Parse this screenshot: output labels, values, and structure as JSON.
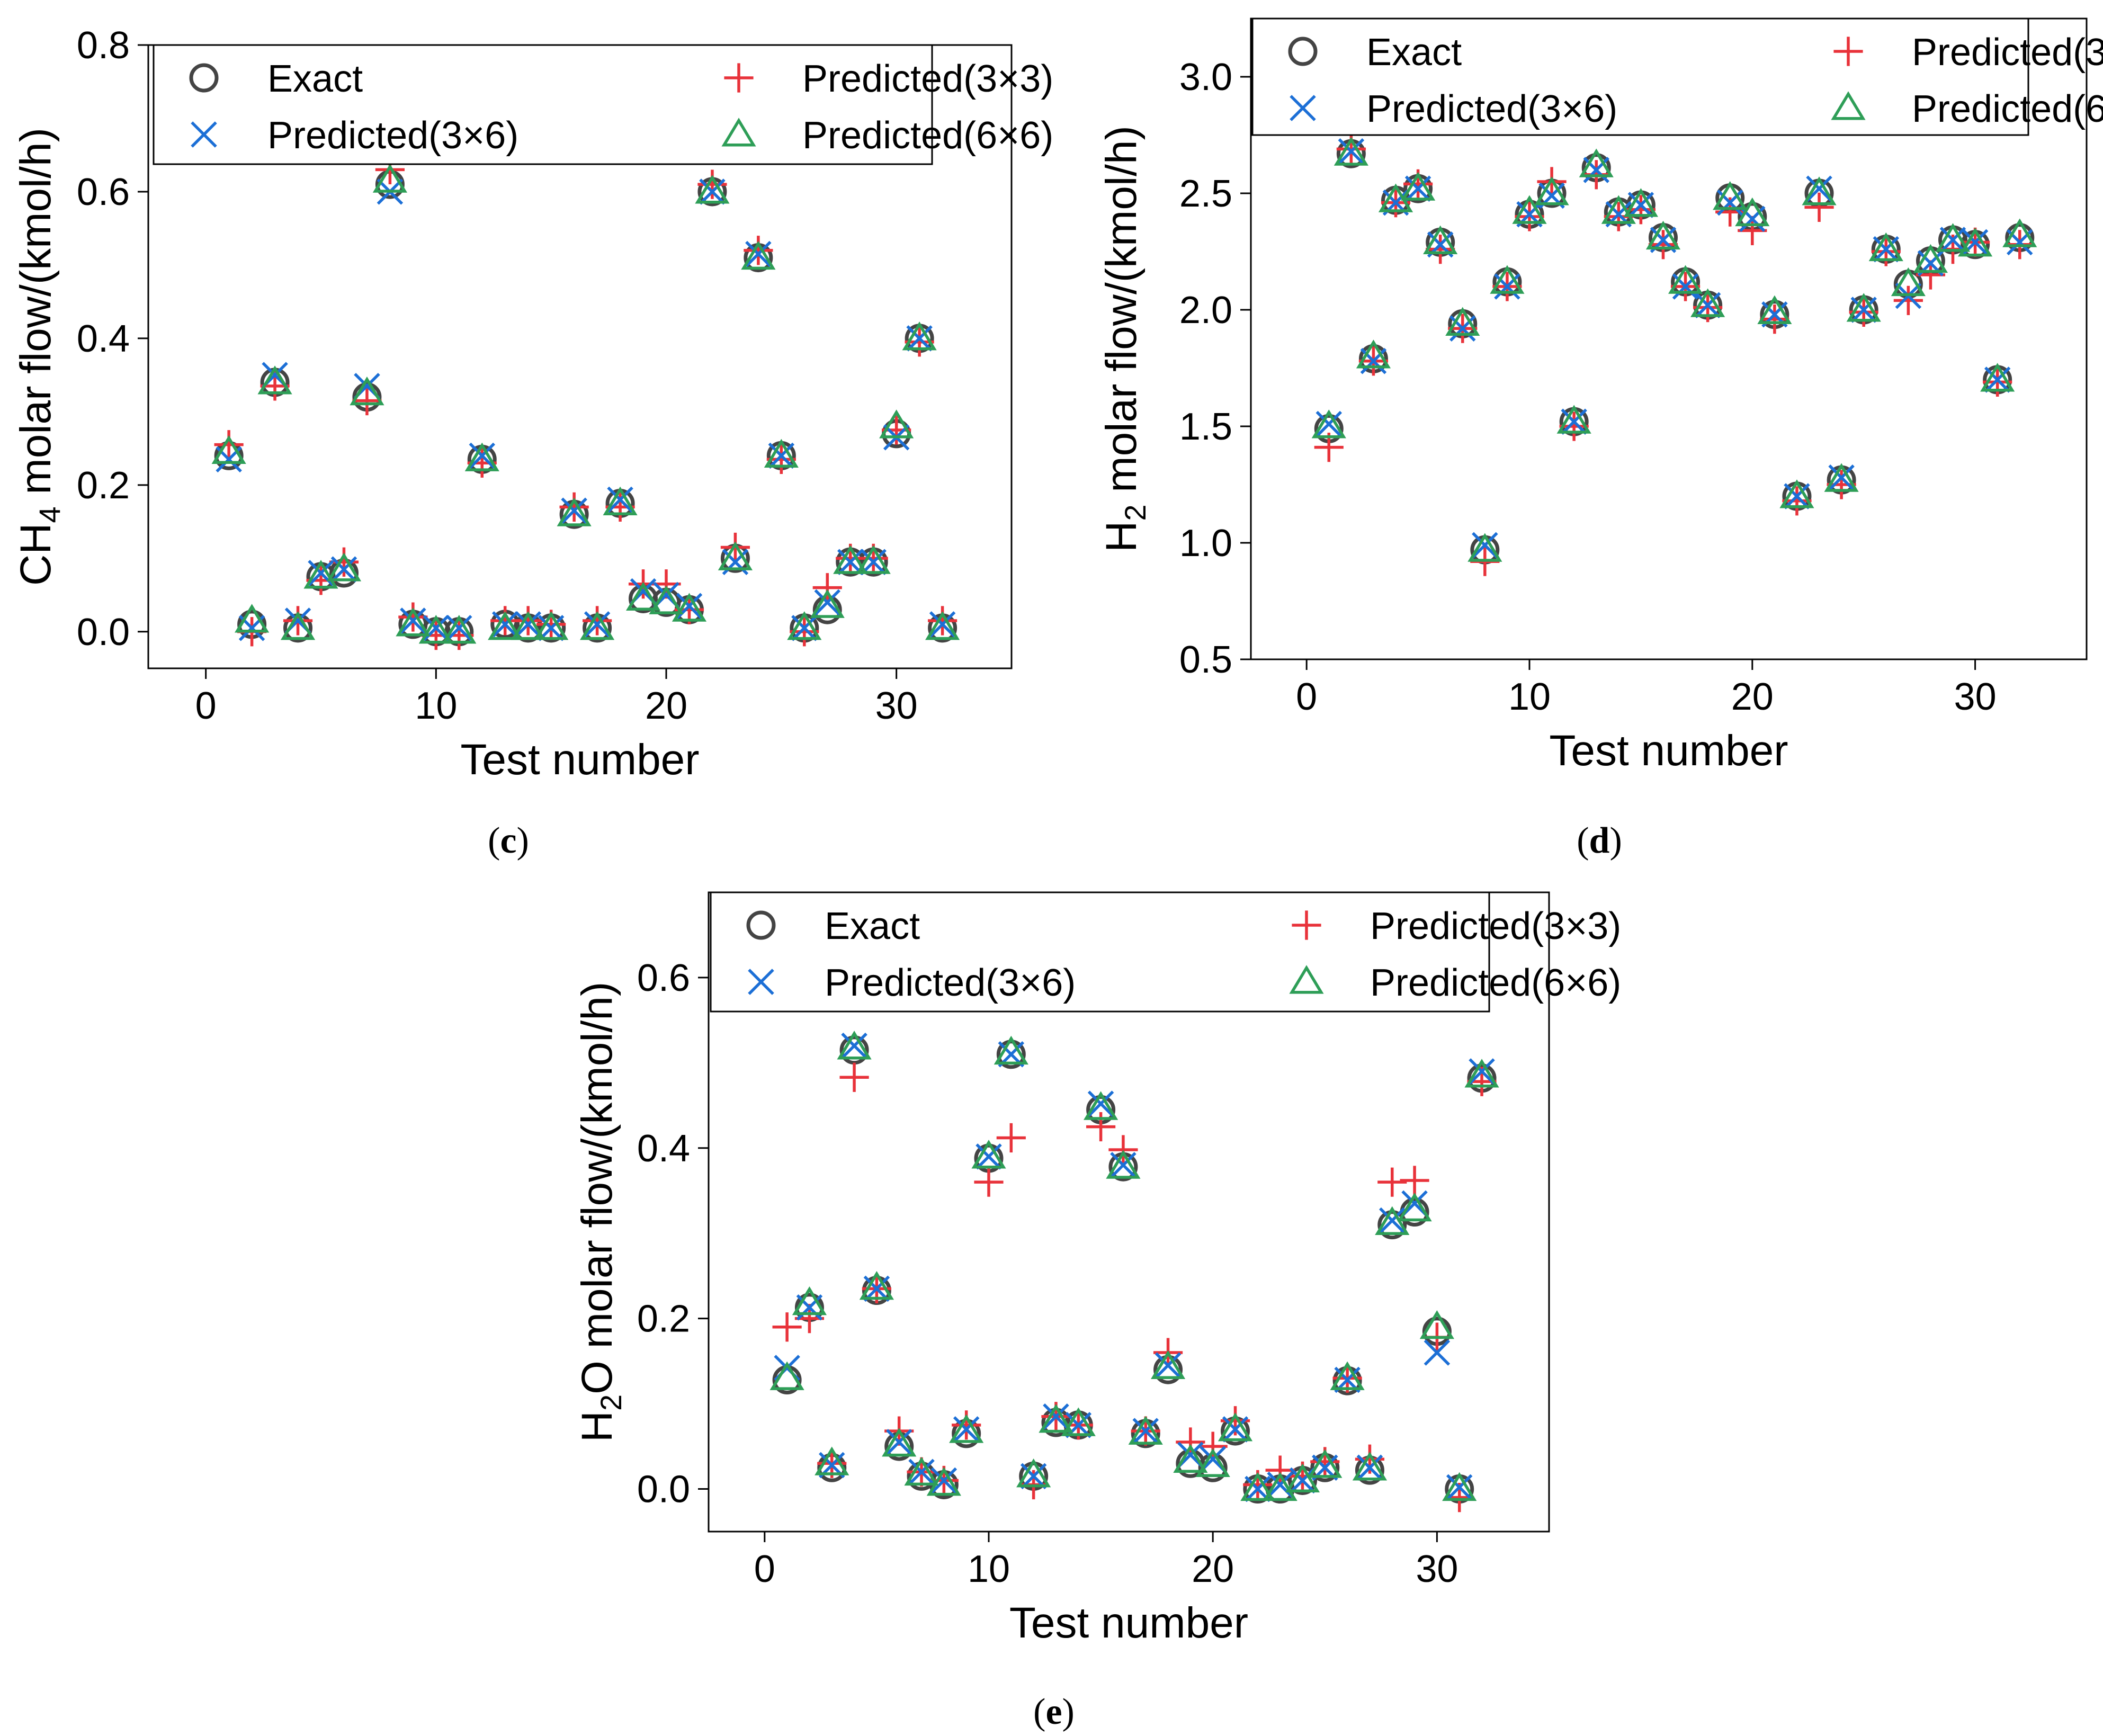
{
  "colors": {
    "exact": "#444444",
    "pred3x3": "#e8323a",
    "pred3x6": "#1c6fd6",
    "pred6x6": "#2e9e57"
  },
  "legend_labels": [
    "Exact",
    "Predicted(3×3)",
    "Predicted(3×6)",
    "Predicted(6×6)"
  ],
  "chart_data": [
    {
      "type": "scatter",
      "panel_label": "(c)",
      "xlabel": "Test number",
      "ylabel": {
        "base": "CH",
        "sub": "4",
        "rest": " molar flow/(kmol/h)"
      },
      "xlim": [
        -2.5,
        35
      ],
      "ylim": [
        -0.05,
        0.8
      ],
      "xticks": [
        0,
        10,
        20,
        30
      ],
      "yticks": [
        0.0,
        0.2,
        0.4,
        0.6,
        0.8
      ],
      "ytick_labels": [
        "0.0",
        "0.2",
        "0.4",
        "0.6",
        "0.8"
      ],
      "x": [
        1,
        2,
        3,
        4,
        5,
        6,
        7,
        8,
        9,
        10,
        11,
        12,
        13,
        14,
        15,
        16,
        17,
        18,
        19,
        20,
        21,
        22,
        23,
        24,
        25,
        26,
        27,
        28,
        29,
        30,
        31,
        32
      ],
      "series": [
        {
          "name": "Exact",
          "marker": "circle",
          "values": [
            0.24,
            0.01,
            0.34,
            0.005,
            0.075,
            0.08,
            0.32,
            0.61,
            0.01,
            0.0,
            0.0,
            0.235,
            0.01,
            0.005,
            0.005,
            0.16,
            0.005,
            0.175,
            0.045,
            0.04,
            0.03,
            0.6,
            0.1,
            0.51,
            0.24,
            0.005,
            0.03,
            0.095,
            0.095,
            0.27,
            0.4,
            0.005
          ]
        },
        {
          "name": "Predicted(3×3)",
          "marker": "plus",
          "values": [
            0.255,
            0.0,
            0.335,
            0.015,
            0.07,
            0.095,
            0.315,
            0.63,
            0.02,
            -0.005,
            -0.005,
            0.23,
            0.015,
            0.015,
            0.01,
            0.17,
            0.015,
            0.17,
            0.065,
            0.065,
            0.03,
            0.61,
            0.115,
            0.52,
            0.235,
            0.0,
            0.06,
            0.1,
            0.1,
            0.275,
            0.395,
            0.015
          ]
        },
        {
          "name": "Predicted(3×6)",
          "marker": "cross",
          "values": [
            0.235,
            0.005,
            0.35,
            0.015,
            0.08,
            0.085,
            0.335,
            0.6,
            0.015,
            0.005,
            0.005,
            0.24,
            0.01,
            0.01,
            0.005,
            0.165,
            0.01,
            0.18,
            0.055,
            0.05,
            0.035,
            0.6,
            0.095,
            0.515,
            0.24,
            0.005,
            0.04,
            0.095,
            0.095,
            0.265,
            0.4,
            0.01
          ]
        },
        {
          "name": "Predicted(6×6)",
          "marker": "triangle",
          "values": [
            0.245,
            0.015,
            0.34,
            0.005,
            0.075,
            0.085,
            0.325,
            0.615,
            0.01,
            0.0,
            0.0,
            0.235,
            0.005,
            0.005,
            0.005,
            0.16,
            0.005,
            0.175,
            0.045,
            0.04,
            0.03,
            0.6,
            0.1,
            0.51,
            0.24,
            0.005,
            0.035,
            0.095,
            0.095,
            0.28,
            0.4,
            0.005
          ]
        }
      ]
    },
    {
      "type": "scatter",
      "panel_label": "(d)",
      "xlabel": "Test number",
      "ylabel": {
        "base": "H",
        "sub": "2",
        "rest": " molar flow/(kmol/h)"
      },
      "xlim": [
        -2.5,
        35
      ],
      "ylim": [
        0.5,
        3.25
      ],
      "xticks": [
        0,
        10,
        20,
        30
      ],
      "yticks": [
        0.5,
        1.0,
        1.5,
        2.0,
        2.5,
        3.0
      ],
      "ytick_labels": [
        "0.5",
        "1.0",
        "1.5",
        "2.0",
        "2.5",
        "3.0"
      ],
      "x": [
        1,
        2,
        3,
        4,
        5,
        6,
        7,
        8,
        9,
        10,
        11,
        12,
        13,
        14,
        15,
        16,
        17,
        18,
        19,
        20,
        21,
        22,
        23,
        24,
        25,
        26,
        27,
        28,
        29,
        30,
        31,
        32
      ],
      "series": [
        {
          "name": "Exact",
          "marker": "circle",
          "values": [
            1.49,
            2.67,
            1.79,
            2.47,
            2.52,
            2.29,
            1.94,
            0.97,
            2.12,
            2.41,
            2.5,
            1.52,
            2.61,
            2.42,
            2.45,
            2.31,
            2.12,
            2.02,
            2.48,
            2.4,
            1.98,
            1.2,
            2.5,
            1.27,
            2.0,
            2.26,
            2.11,
            2.21,
            2.3,
            2.28,
            1.7,
            2.31
          ]
        },
        {
          "name": "Predicted(3×3)",
          "marker": "plus",
          "values": [
            1.41,
            2.69,
            1.78,
            2.46,
            2.54,
            2.26,
            1.92,
            0.92,
            2.1,
            2.4,
            2.55,
            1.5,
            2.58,
            2.4,
            2.43,
            2.28,
            2.1,
            2.01,
            2.42,
            2.34,
            1.96,
            1.18,
            2.44,
            1.25,
            1.99,
            2.25,
            2.04,
            2.15,
            2.26,
            2.29,
            1.69,
            2.28
          ]
        },
        {
          "name": "Predicted(3×6)",
          "marker": "cross",
          "values": [
            1.51,
            2.68,
            1.78,
            2.46,
            2.52,
            2.28,
            1.92,
            0.99,
            2.1,
            2.41,
            2.49,
            1.52,
            2.6,
            2.41,
            2.45,
            2.3,
            2.1,
            2.02,
            2.46,
            2.39,
            1.98,
            1.2,
            2.52,
            1.28,
            2.0,
            2.26,
            2.06,
            2.2,
            2.3,
            2.29,
            1.7,
            2.29
          ]
        },
        {
          "name": "Predicted(6×6)",
          "marker": "triangle",
          "values": [
            1.5,
            2.67,
            1.8,
            2.47,
            2.52,
            2.29,
            1.94,
            0.97,
            2.12,
            2.42,
            2.5,
            1.52,
            2.62,
            2.42,
            2.45,
            2.31,
            2.12,
            2.02,
            2.48,
            2.41,
            1.99,
            1.2,
            2.5,
            1.27,
            2.0,
            2.26,
            2.11,
            2.21,
            2.3,
            2.28,
            1.7,
            2.32
          ]
        }
      ]
    },
    {
      "type": "scatter",
      "panel_label": "(e)",
      "xlabel": "Test number",
      "ylabel": {
        "base": "H",
        "sub": "2",
        "rest": "O molar flow/(kmol/h)"
      },
      "xlim": [
        -2.5,
        35
      ],
      "ylim": [
        -0.05,
        0.7
      ],
      "xticks": [
        0,
        10,
        20,
        30
      ],
      "yticks": [
        0.0,
        0.2,
        0.4,
        0.6
      ],
      "ytick_labels": [
        "0.0",
        "0.2",
        "0.4",
        "0.6"
      ],
      "x": [
        1,
        2,
        3,
        4,
        5,
        6,
        7,
        8,
        9,
        10,
        11,
        12,
        13,
        14,
        15,
        16,
        17,
        18,
        19,
        20,
        21,
        22,
        23,
        24,
        25,
        26,
        27,
        28,
        29,
        30,
        31,
        32
      ],
      "series": [
        {
          "name": "Exact",
          "marker": "circle",
          "values": [
            0.128,
            0.213,
            0.025,
            0.515,
            0.233,
            0.05,
            0.015,
            0.005,
            0.065,
            0.388,
            0.51,
            0.015,
            0.078,
            0.075,
            0.445,
            0.378,
            0.065,
            0.14,
            0.03,
            0.025,
            0.068,
            0.0,
            0.0,
            0.01,
            0.025,
            0.127,
            0.022,
            0.31,
            0.325,
            0.185,
            0.0,
            0.482
          ]
        },
        {
          "name": "Predicted(3×3)",
          "marker": "plus",
          "values": [
            0.19,
            0.2,
            0.03,
            0.483,
            0.235,
            0.068,
            0.02,
            0.01,
            0.075,
            0.36,
            0.412,
            0.005,
            0.085,
            0.075,
            0.425,
            0.398,
            0.068,
            0.16,
            0.055,
            0.05,
            0.08,
            0.005,
            0.022,
            0.015,
            0.032,
            0.13,
            0.035,
            0.36,
            0.362,
            0.178,
            -0.01,
            0.478
          ]
        },
        {
          "name": "Predicted(3×6)",
          "marker": "cross",
          "values": [
            0.142,
            0.213,
            0.028,
            0.52,
            0.235,
            0.055,
            0.02,
            0.01,
            0.07,
            0.39,
            0.51,
            0.015,
            0.085,
            0.075,
            0.452,
            0.38,
            0.068,
            0.145,
            0.04,
            0.035,
            0.07,
            0.0,
            0.005,
            0.01,
            0.025,
            0.128,
            0.025,
            0.315,
            0.335,
            0.16,
            0.002,
            0.49
          ]
        },
        {
          "name": "Predicted(6×6)",
          "marker": "triangle",
          "values": [
            0.13,
            0.218,
            0.03,
            0.518,
            0.236,
            0.052,
            0.018,
            0.006,
            0.068,
            0.39,
            0.512,
            0.016,
            0.08,
            0.076,
            0.447,
            0.378,
            0.066,
            0.143,
            0.033,
            0.028,
            0.07,
            0.0,
            0.0,
            0.01,
            0.027,
            0.13,
            0.024,
            0.312,
            0.328,
            0.19,
            0.0,
            0.485
          ]
        }
      ]
    }
  ]
}
